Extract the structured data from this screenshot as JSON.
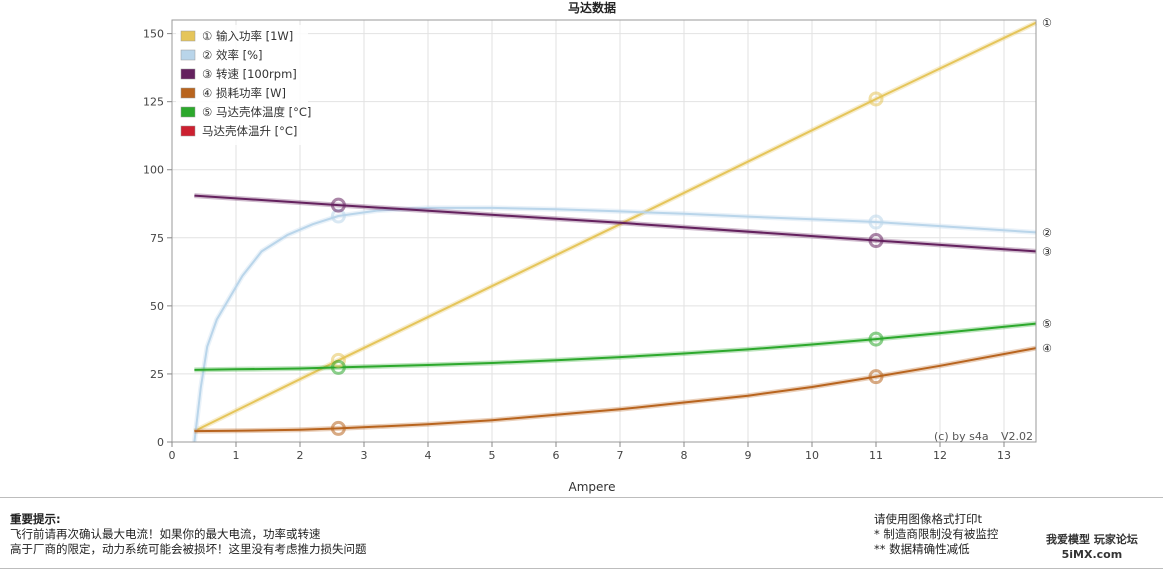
{
  "chart_data": {
    "type": "line",
    "title": "马达数据",
    "xlabel": "Ampere",
    "ylabel": "",
    "xlim": [
      0,
      13.5
    ],
    "ylim": [
      0,
      155
    ],
    "x_ticks": [
      0,
      1,
      2,
      3,
      4,
      5,
      6,
      7,
      8,
      9,
      10,
      11,
      12,
      13
    ],
    "y_ticks": [
      0,
      25,
      50,
      75,
      100,
      125,
      150
    ],
    "grid": true,
    "legend_position": "top-left",
    "credit": "(c) by s4a",
    "version": "V2.02",
    "markers_x": [
      2.6,
      11.0
    ],
    "series": [
      {
        "name": "① 输入功率 [1W]",
        "end_label": "①",
        "color": "#e5c55a",
        "points": [
          [
            0.35,
            4
          ],
          [
            2.6,
            30
          ],
          [
            7,
            80
          ],
          [
            11,
            126
          ],
          [
            13.5,
            154
          ]
        ]
      },
      {
        "name": "② 效率 [%]",
        "end_label": "②",
        "color": "#b9d5ea",
        "points": [
          [
            0.35,
            0
          ],
          [
            0.45,
            20
          ],
          [
            0.55,
            35
          ],
          [
            0.7,
            45
          ],
          [
            0.9,
            53
          ],
          [
            1.1,
            61
          ],
          [
            1.4,
            70
          ],
          [
            1.8,
            76
          ],
          [
            2.2,
            80
          ],
          [
            2.6,
            83
          ],
          [
            3.2,
            85
          ],
          [
            4,
            86
          ],
          [
            5,
            86
          ],
          [
            6,
            85.5
          ],
          [
            7,
            84.7
          ],
          [
            8,
            83.8
          ],
          [
            9,
            82.8
          ],
          [
            10,
            81.8
          ],
          [
            11,
            80.8
          ],
          [
            12,
            79.3
          ],
          [
            13.5,
            77
          ]
        ]
      },
      {
        "name": "③ 转速 [100rpm]",
        "end_label": "③",
        "color": "#64215e",
        "points": [
          [
            0.35,
            90.5
          ],
          [
            2.6,
            87
          ],
          [
            7,
            80.5
          ],
          [
            11,
            74
          ],
          [
            13.5,
            70
          ]
        ]
      },
      {
        "name": "④ 损耗功率 [W]",
        "end_label": "④",
        "color": "#b8641e",
        "points": [
          [
            0.35,
            4
          ],
          [
            1,
            4.1
          ],
          [
            2,
            4.5
          ],
          [
            2.6,
            5
          ],
          [
            4,
            6.5
          ],
          [
            5,
            8
          ],
          [
            6,
            10
          ],
          [
            7,
            12
          ],
          [
            8,
            14.5
          ],
          [
            9,
            17
          ],
          [
            10,
            20.2
          ],
          [
            11,
            24
          ],
          [
            12,
            28
          ],
          [
            13.5,
            34.5
          ]
        ]
      },
      {
        "name": "⑤ 马达壳体温度 [°C]",
        "end_label": "⑤",
        "color": "#2ca82c",
        "points": [
          [
            0.35,
            26.5
          ],
          [
            1,
            26.7
          ],
          [
            2,
            27
          ],
          [
            2.6,
            27.4
          ],
          [
            4,
            28.3
          ],
          [
            5,
            29
          ],
          [
            6,
            30
          ],
          [
            7,
            31.2
          ],
          [
            8,
            32.5
          ],
          [
            9,
            34
          ],
          [
            10,
            35.8
          ],
          [
            11,
            37.8
          ],
          [
            12,
            40
          ],
          [
            13.5,
            43.5
          ]
        ]
      },
      {
        "name": "马达壳体温升 [°C]",
        "end_label": "",
        "color": "#cc2030",
        "points": []
      }
    ]
  },
  "footer": {
    "important_title": "重要提示:",
    "note_line_1": "飞行前请再次确认最大电流！如果你的最大电流，功率或转速",
    "note_line_2": "高于厂商的限定，动力系统可能会被损坏！这里没有考虑推力损失问题",
    "print_hint": "请使用图像格式打印t",
    "footnote_1": "* 制造商限制没有被监控",
    "footnote_2": "** 数据精确性减低",
    "watermark_line_1": "我爱模型 玩家论坛",
    "watermark_line_2": "5iMX.com"
  }
}
